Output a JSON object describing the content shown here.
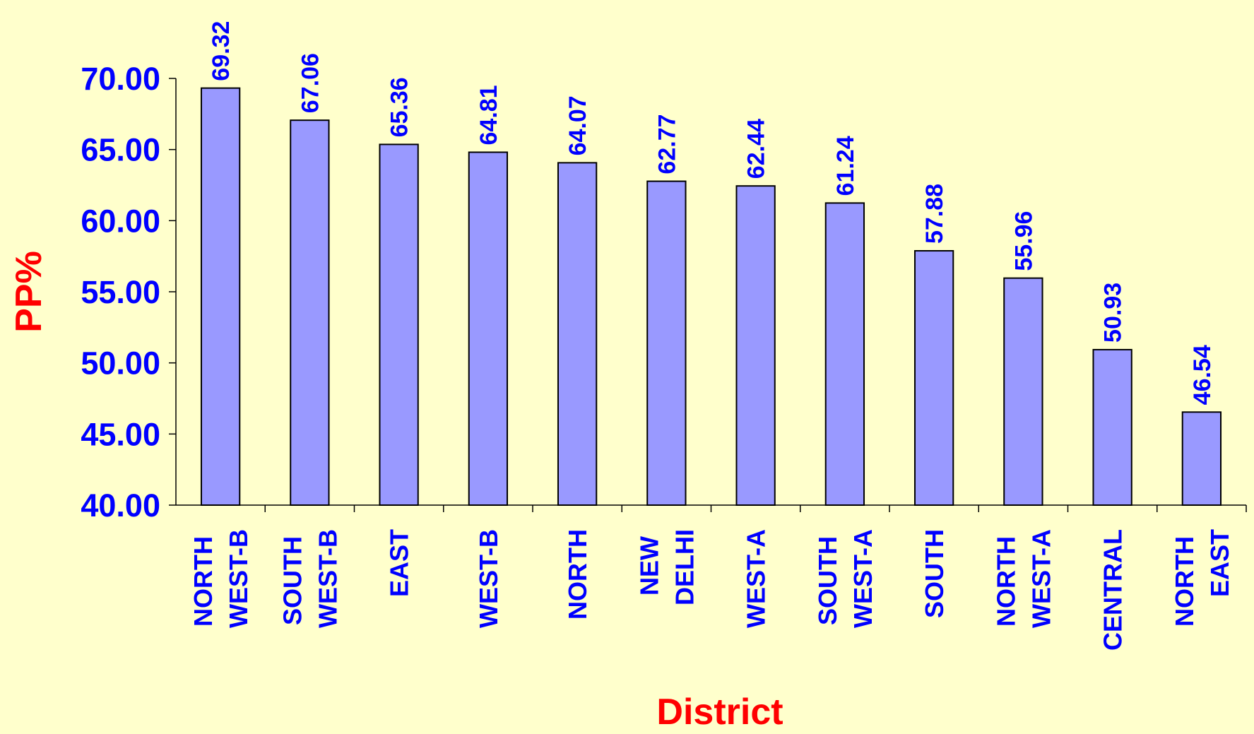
{
  "chart_data": {
    "type": "bar",
    "x_label": "District",
    "y_label": "PP%",
    "categories": [
      "NORTH WEST-B",
      "SOUTH WEST-B",
      "EAST",
      "WEST-B",
      "NORTH",
      "NEW DELHI",
      "WEST-A",
      "SOUTH WEST-A",
      "SOUTH",
      "NORTH WEST-A",
      "CENTRAL",
      "NORTH EAST"
    ],
    "values": [
      69.32,
      67.06,
      65.36,
      64.81,
      64.07,
      62.77,
      62.44,
      61.24,
      57.88,
      55.96,
      50.93,
      46.54
    ],
    "color": "#9999ff",
    "ylim": [
      40,
      70
    ],
    "yticks": [
      {
        "value": 40,
        "label": "40.00"
      },
      {
        "value": 45,
        "label": "45.00"
      },
      {
        "value": 50,
        "label": "50.00"
      },
      {
        "value": 55,
        "label": "55.00"
      },
      {
        "value": 60,
        "label": "60.00"
      },
      {
        "value": 65,
        "label": "65.00"
      },
      {
        "value": 70,
        "label": "70.00"
      }
    ],
    "grid": false
  }
}
